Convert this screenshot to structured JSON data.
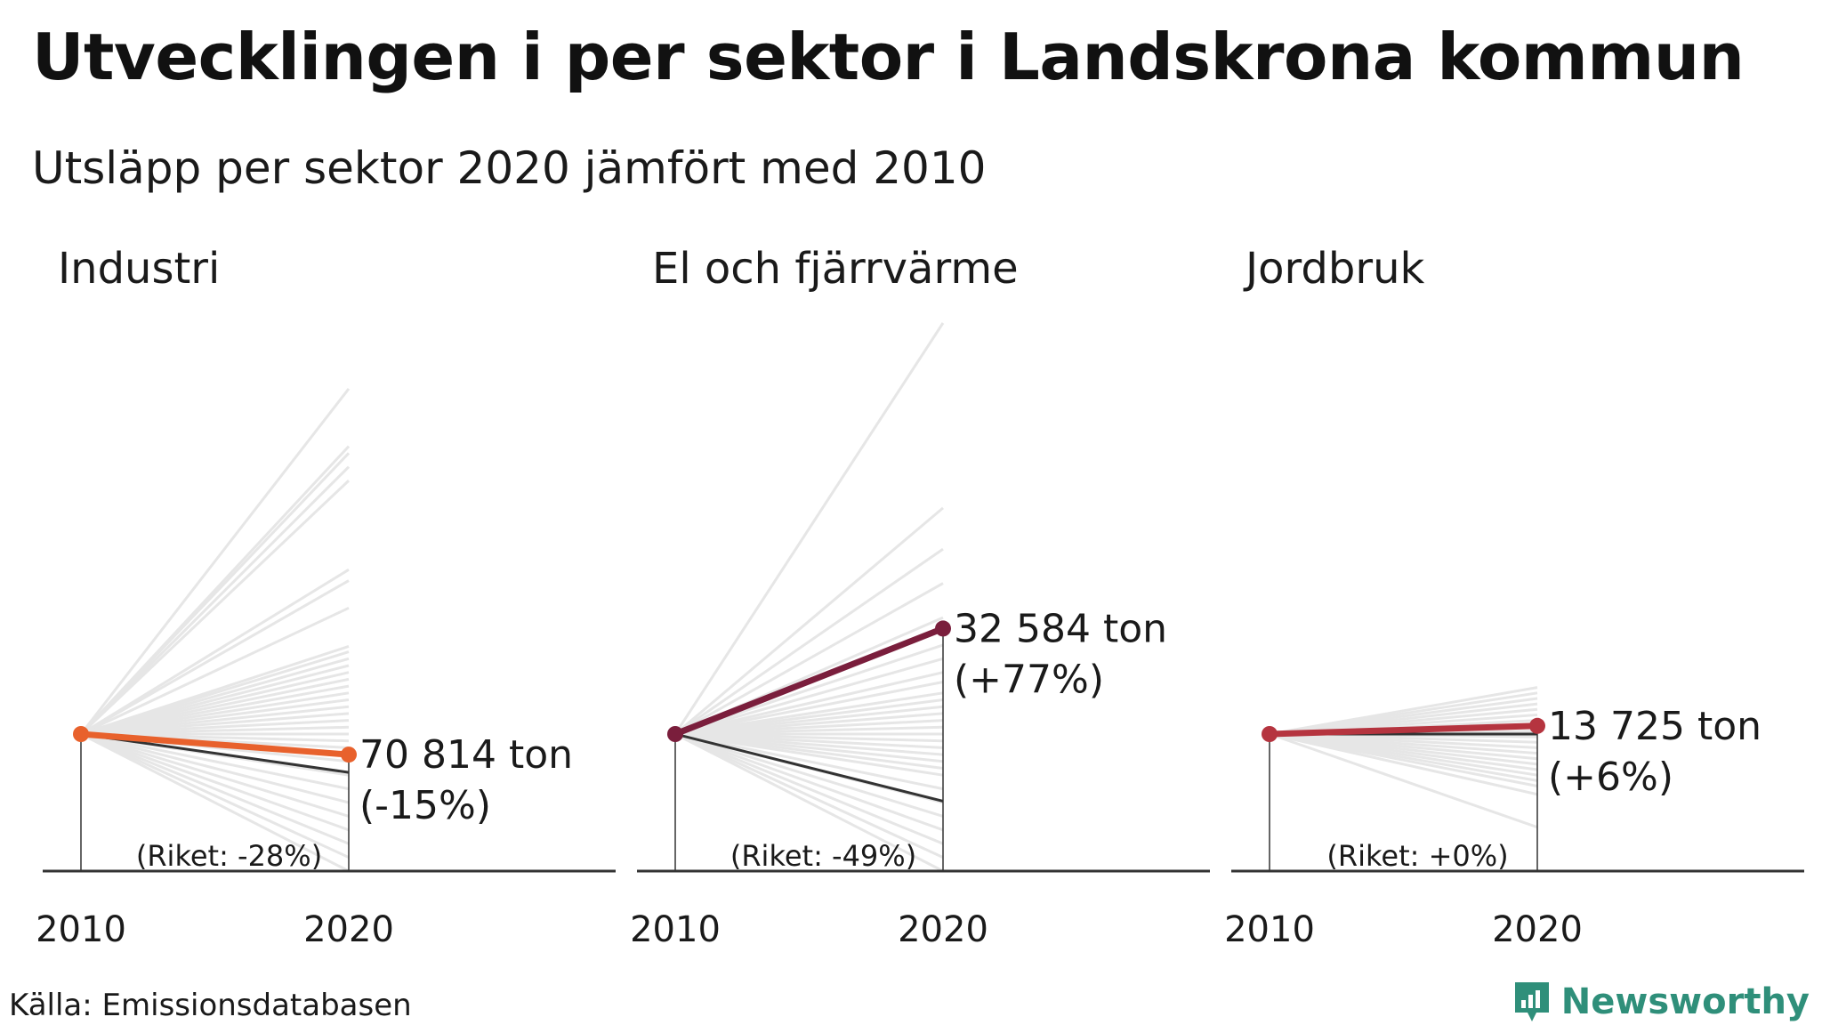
{
  "title": "Utvecklingen i per sektor i Landskrona kommun",
  "subtitle": "Utsläpp per sektor 2020 jämfört med 2010",
  "source": "Källa: Emissionsdatabasen",
  "brand": "Newsworthy",
  "colors": {
    "background_lines": "#e6e6e6",
    "national_line": "#333333",
    "axis": "#333333"
  },
  "chart_data": [
    {
      "type": "line",
      "title": "Industri",
      "x": [
        "2010",
        "2020"
      ],
      "ylim": [
        -100,
        100
      ],
      "highlight": {
        "name": "Landskrona",
        "change_pct": -15,
        "value": "70 814 ton",
        "label": "(-15%)",
        "color": "#e8612c"
      },
      "national": {
        "name": "Riket",
        "change_pct": -28,
        "label": "(Riket: -28%)"
      },
      "others_change_pct": [
        252,
        210,
        205,
        195,
        185,
        120,
        112,
        92,
        64,
        60,
        55,
        50,
        45,
        40,
        35,
        30,
        25,
        20,
        15,
        10,
        5,
        0,
        -5,
        -10,
        -20,
        -30,
        -40,
        -50,
        -60,
        -70,
        -80,
        -90,
        -100
      ]
    },
    {
      "type": "line",
      "title": "El och fjärrvärme",
      "x": [
        "2010",
        "2020"
      ],
      "ylim": [
        -100,
        100
      ],
      "highlight": {
        "name": "Landskrona",
        "change_pct": 77,
        "value": "32 584 ton",
        "label": "(+77%)",
        "color": "#7a1e3c"
      },
      "national": {
        "name": "Riket",
        "change_pct": -49,
        "label": "(Riket: -49%)"
      },
      "others_change_pct": [
        300,
        165,
        135,
        110,
        85,
        65,
        55,
        45,
        38,
        30,
        25,
        20,
        15,
        10,
        5,
        0,
        -5,
        -10,
        -15,
        -20,
        -25,
        -30,
        -40,
        -50,
        -60,
        -70,
        -80,
        -90,
        -100
      ]
    },
    {
      "type": "line",
      "title": "Jordbruk",
      "x": [
        "2010",
        "2020"
      ],
      "ylim": [
        -100,
        100
      ],
      "highlight": {
        "name": "Landskrona",
        "change_pct": 6,
        "value": "13 725 ton",
        "label": "(+6%)",
        "color": "#b5343f"
      },
      "national": {
        "name": "Riket",
        "change_pct": 0,
        "label": "(Riket: +0%)"
      },
      "others_change_pct": [
        34,
        30,
        26,
        22,
        18,
        14,
        10,
        6,
        2,
        -2,
        -6,
        -10,
        -14,
        -18,
        -22,
        -26,
        -30,
        -34,
        -38,
        -44,
        -68
      ]
    }
  ]
}
